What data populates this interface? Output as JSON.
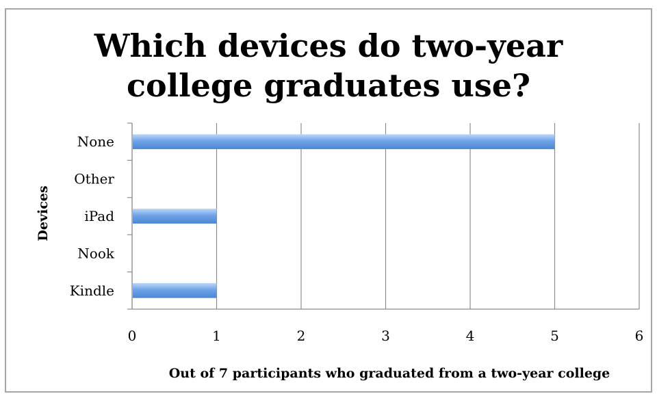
{
  "chart_data": {
    "type": "bar",
    "orientation": "horizontal",
    "title_lines": [
      "Which devices do two-year",
      "college graduates use?"
    ],
    "categories": [
      "Kindle",
      "Nook",
      "iPad",
      "Other",
      "None"
    ],
    "values": [
      1,
      0,
      1,
      0,
      5
    ],
    "xlabel": "Out of 7 participants who graduated from a two-year college",
    "ylabel": "Devices",
    "xlim": [
      0,
      6
    ],
    "xticks": [
      "0",
      "1",
      "2",
      "3",
      "4",
      "5",
      "6"
    ],
    "grid": true,
    "legend": "none",
    "colors": {
      "bar": "#6fa3e8",
      "bar_light": "#bcd7f7",
      "bar_dark": "#4a86d4",
      "grid": "#8c8c8c"
    }
  }
}
